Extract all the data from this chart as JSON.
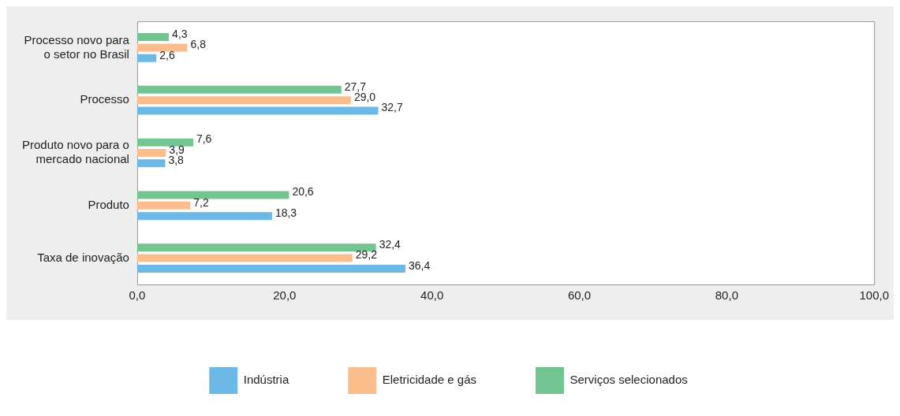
{
  "chart_data": {
    "type": "bar",
    "orientation": "horizontal",
    "categories": [
      "Processo novo para o setor no Brasil",
      "Processo",
      "Produto novo para o mercado nacional",
      "Produto",
      "Taxa de inovação"
    ],
    "series": [
      {
        "name": "Indústria",
        "color": "#6cb8e6",
        "values": [
          2.6,
          32.7,
          3.8,
          18.3,
          36.4
        ],
        "value_labels": [
          "2,6",
          "32,7",
          "3,8",
          "18,3",
          "36,4"
        ]
      },
      {
        "name": "Eletricidade e gás",
        "color": "#fbbd8c",
        "values": [
          6.8,
          29.0,
          3.9,
          7.2,
          29.2
        ],
        "value_labels": [
          "6,8",
          "29,0",
          "3,9",
          "7,2",
          "29,2"
        ]
      },
      {
        "name": "Serviços selecionados",
        "color": "#72c590",
        "values": [
          4.3,
          27.7,
          7.6,
          20.6,
          32.4
        ],
        "value_labels": [
          "4,3",
          "27,7",
          "7,6",
          "20,6",
          "32,4"
        ]
      }
    ],
    "xlim": [
      0,
      100
    ],
    "xticks": [
      {
        "value": 0,
        "label": "0,0"
      },
      {
        "value": 20,
        "label": "20,0"
      },
      {
        "value": 40,
        "label": "40,0"
      },
      {
        "value": 60,
        "label": "60,0"
      },
      {
        "value": 80,
        "label": "80,0"
      },
      {
        "value": 100,
        "label": "100,0"
      }
    ],
    "grid": false,
    "legend": "bottom"
  }
}
